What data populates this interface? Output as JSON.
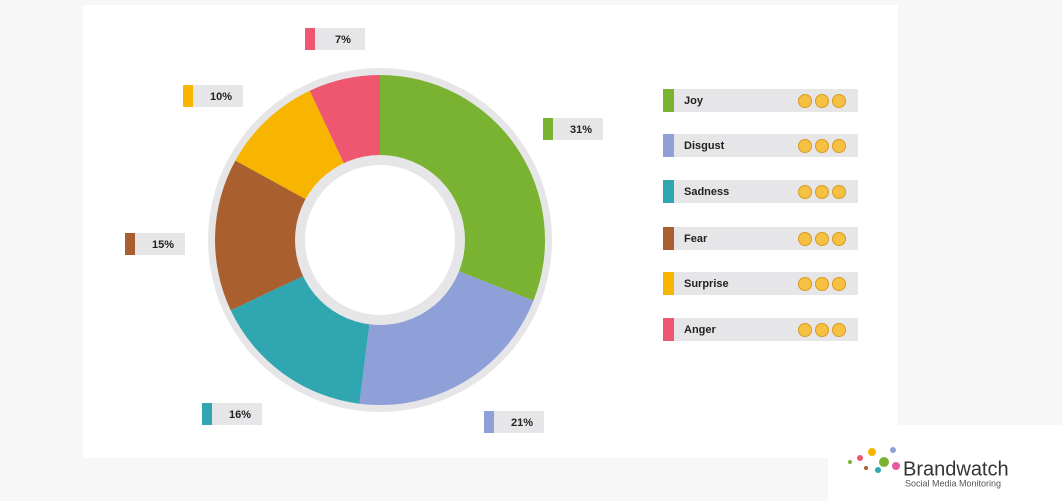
{
  "chart_data": {
    "type": "donut",
    "categories": [
      "Joy",
      "Disgust",
      "Sadness",
      "Fear",
      "Surprise",
      "Anger"
    ],
    "values": [
      31,
      21,
      16,
      15,
      10,
      7
    ],
    "value_labels": [
      "31%",
      "21%",
      "16%",
      "15%",
      "10%",
      "7%"
    ],
    "colors": [
      "#7ab232",
      "#8fa0d8",
      "#30a6b0",
      "#a9602e",
      "#f7b500",
      "#ef5670"
    ]
  },
  "logo": {
    "name": "Brandwatch",
    "tagline": "Social Media Monitoring"
  }
}
